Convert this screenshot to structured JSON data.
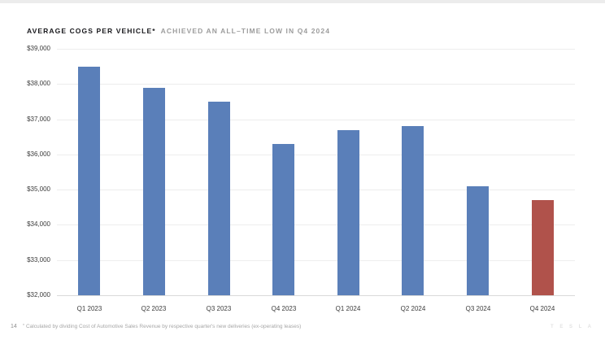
{
  "slide": {
    "page_number": "14",
    "footnote_marker": "*",
    "footnote": "Calculated by dividing Cost of Automotive Sales Revenue by respective quarter's new deliveries (ex-operating leases)",
    "watermark": "T E S L A"
  },
  "title": {
    "primary": "AVERAGE COGS PER VEHICLE*",
    "secondary": "ACHIEVED AN ALL–TIME LOW IN Q4 2024"
  },
  "chart_data": {
    "type": "bar",
    "title": "AVERAGE COGS PER VEHICLE* ACHIEVED AN ALL–TIME LOW IN Q4 2024",
    "categories": [
      "Q1 2023",
      "Q2 2023",
      "Q3 2023",
      "Q4 2023",
      "Q1 2024",
      "Q2 2024",
      "Q3 2024",
      "Q4 2024"
    ],
    "values": [
      38500,
      37900,
      37500,
      36300,
      36700,
      36800,
      35100,
      34700
    ],
    "colors": [
      "#5a7fb9",
      "#5a7fb9",
      "#5a7fb9",
      "#5a7fb9",
      "#5a7fb9",
      "#5a7fb9",
      "#5a7fb9",
      "#b0524b"
    ],
    "bar_color": "#5a7fb9",
    "highlight_color": "#b0524b",
    "ylim": [
      32000,
      39000
    ],
    "grid": true,
    "legend": false,
    "y_ticks": [
      {
        "label": "$39,000",
        "value": 39000
      },
      {
        "label": "$38,000",
        "value": 38000
      },
      {
        "label": "$37,000",
        "value": 37000
      },
      {
        "label": "$36,000",
        "value": 36000
      },
      {
        "label": "$35,000",
        "value": 35000
      },
      {
        "label": "$34,000",
        "value": 34000
      },
      {
        "label": "$33,000",
        "value": 33000
      },
      {
        "label": "$32,000",
        "value": 32000
      }
    ]
  }
}
